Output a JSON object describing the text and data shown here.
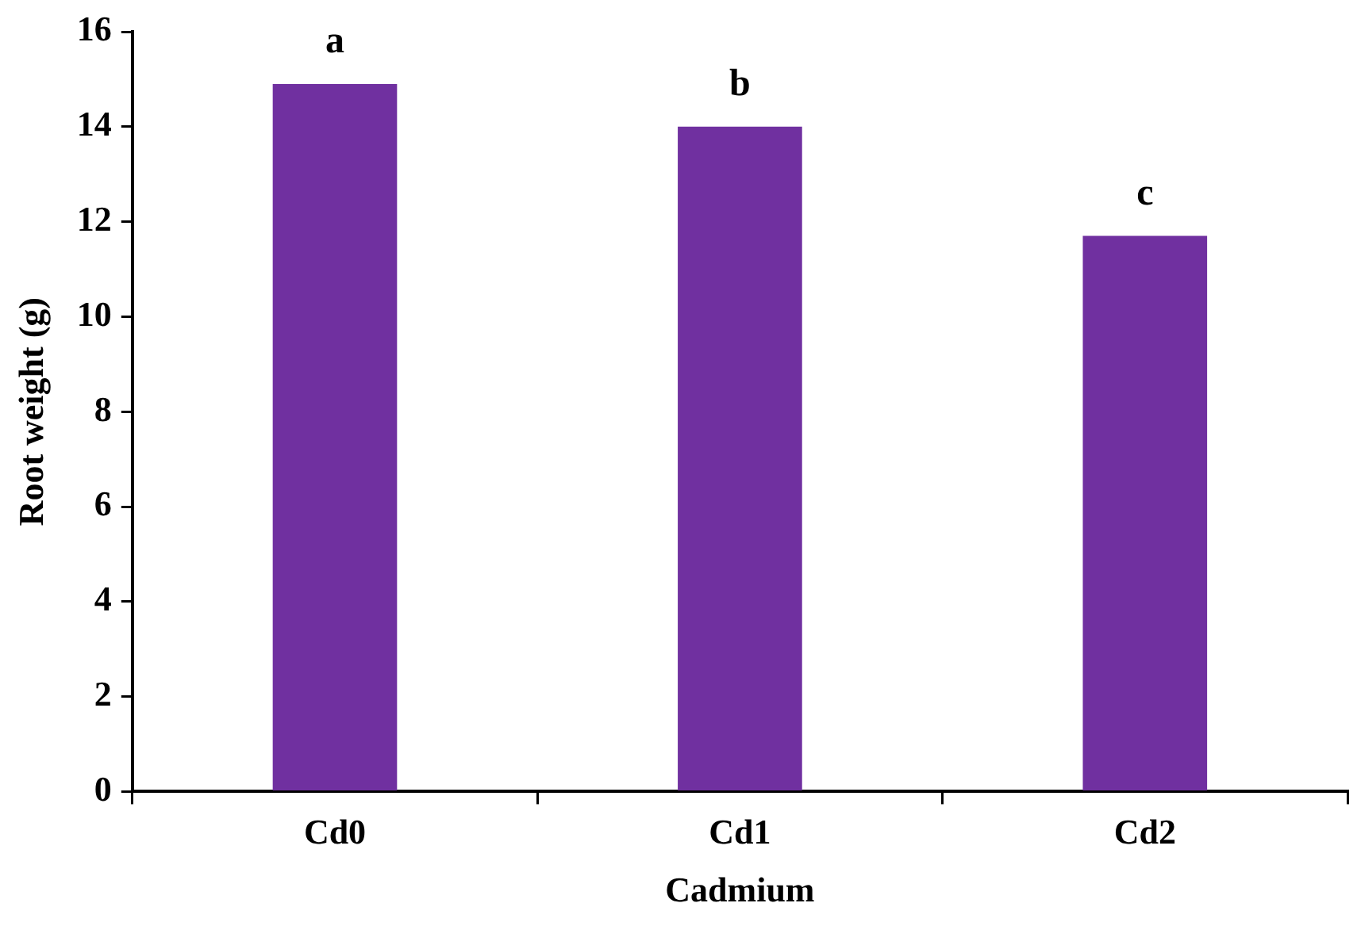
{
  "chart_data": {
    "type": "bar",
    "xlabel": "Cadmium",
    "ylabel": "Root weight (g)",
    "categories": [
      "Cd0",
      "Cd1",
      "Cd2"
    ],
    "values": [
      14.9,
      14.0,
      11.7
    ],
    "color": "#7030a0",
    "ylim": [
      0,
      16
    ],
    "yticks": [
      0,
      2,
      4,
      6,
      8,
      10,
      12,
      14,
      16
    ],
    "annotations": [
      {
        "text": "a",
        "x": "Cd0",
        "y": 14.9
      },
      {
        "text": "b",
        "x": "Cd1",
        "y": 14.0
      },
      {
        "text": "c",
        "x": "Cd2",
        "y": 11.7
      }
    ]
  }
}
